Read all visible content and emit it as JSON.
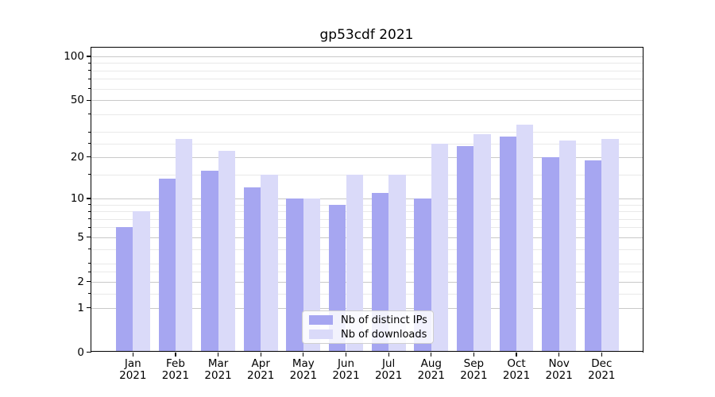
{
  "chart_data": {
    "type": "bar",
    "title": "gp53cdf 2021",
    "x": [
      "Jan",
      "Feb",
      "Mar",
      "Apr",
      "May",
      "Jun",
      "Jul",
      "Aug",
      "Sep",
      "Oct",
      "Nov",
      "Dec"
    ],
    "x_year": "2021",
    "series": [
      {
        "name": "Nb of distinct IPs",
        "color": "#a6a6f1",
        "values": [
          6,
          14,
          16,
          12,
          10,
          9,
          11,
          10,
          24,
          28,
          20,
          19
        ]
      },
      {
        "name": "Nb of downloads",
        "color": "#dadaf9",
        "values": [
          8,
          27,
          22,
          15,
          10,
          15,
          15,
          25,
          29,
          34,
          26,
          27
        ]
      }
    ],
    "yscale": "log1p",
    "ylim": [
      0,
      116
    ],
    "y_ticks": [
      0,
      1,
      2,
      5,
      10,
      20,
      50,
      100
    ],
    "y_minor_ticks": [
      1.5,
      2.5,
      3,
      4,
      6,
      7,
      8,
      9,
      15,
      25,
      30,
      40,
      60,
      70,
      80,
      90
    ],
    "grid": true,
    "legend_position": "lower center"
  }
}
